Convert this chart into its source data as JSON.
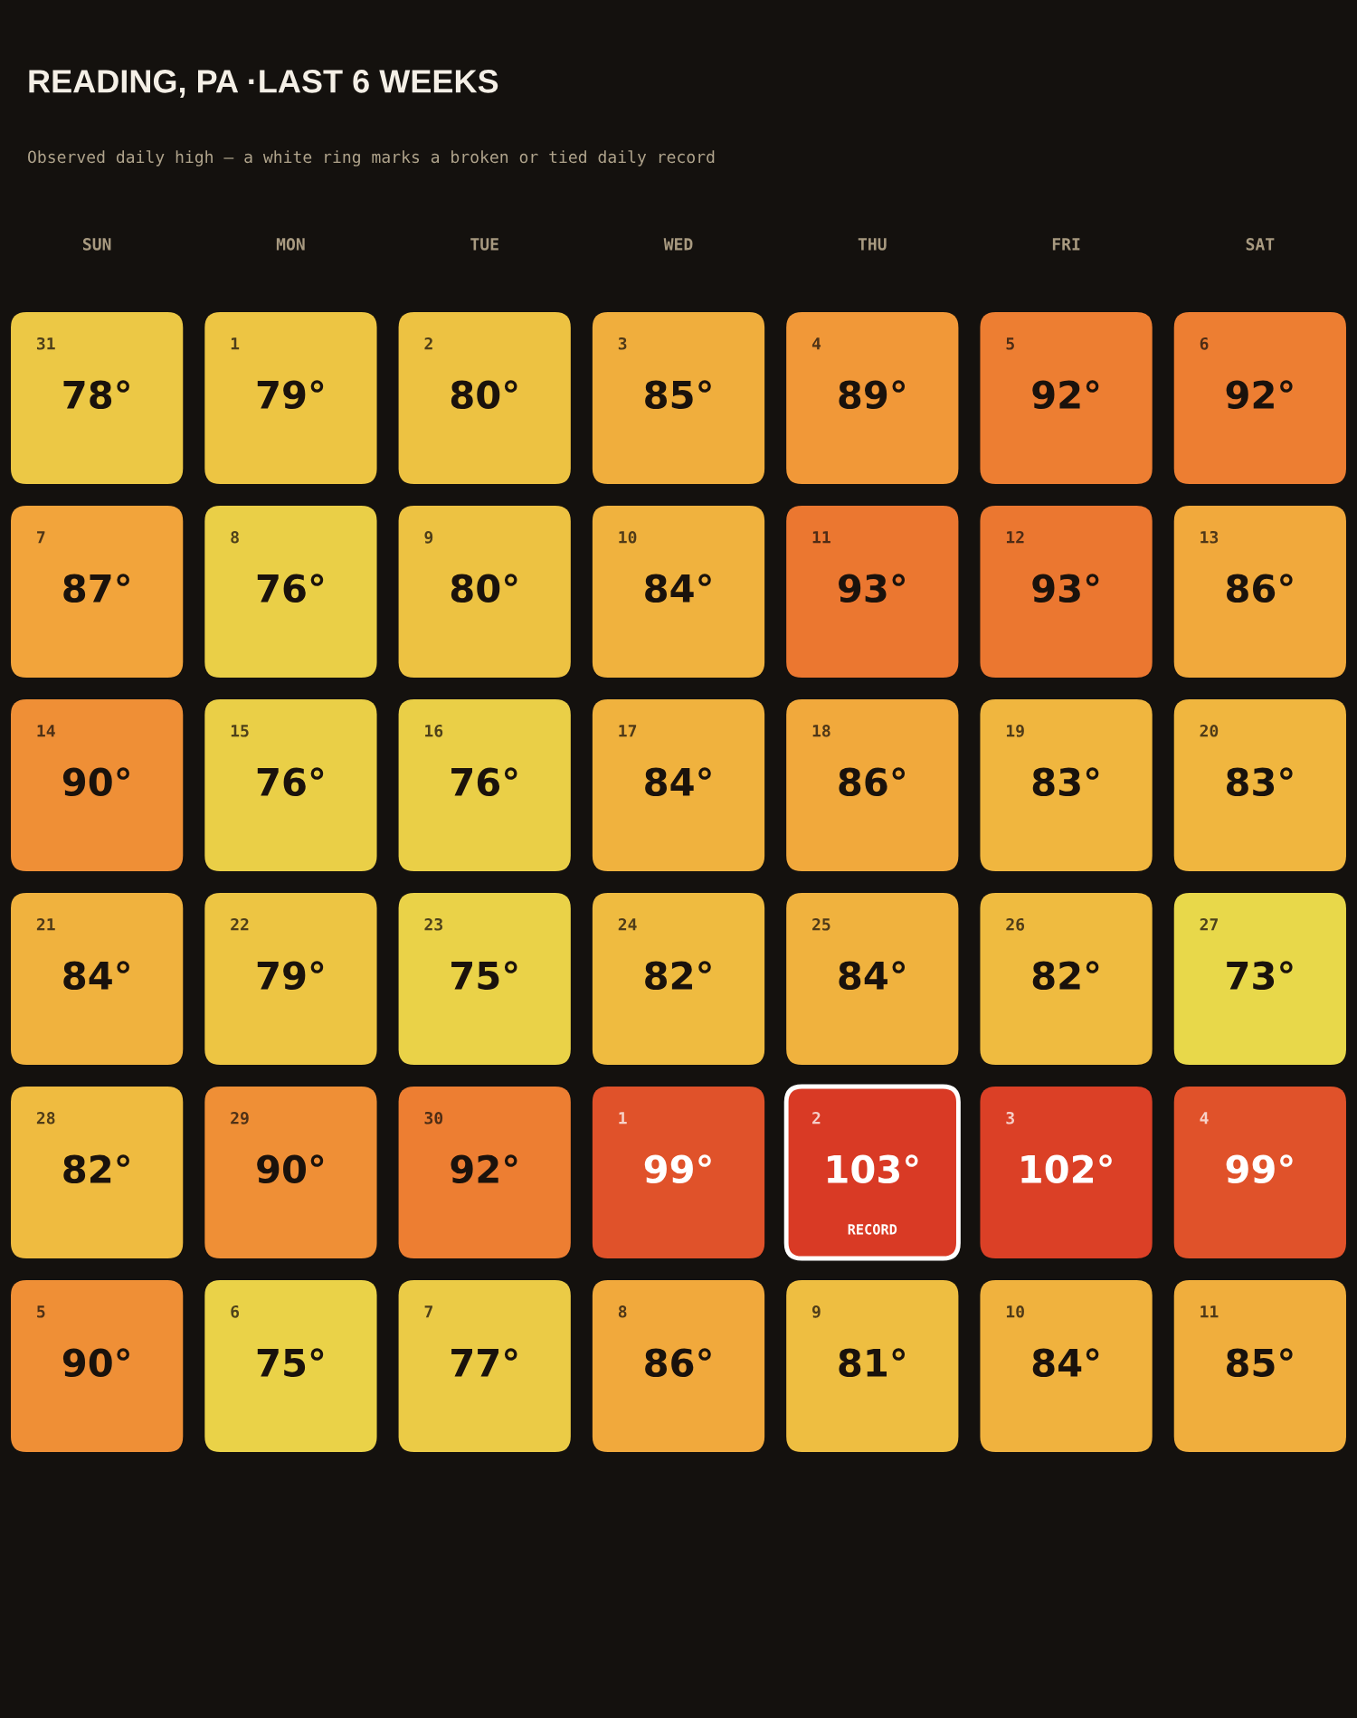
{
  "chart_data": {
    "type": "heatmap",
    "title": "READING, PA ·LAST 6 WEEKS",
    "subtitle": "Observed daily high — a white ring marks a broken or tied daily record",
    "categories": [
      "SUN",
      "MON",
      "TUE",
      "WED",
      "THU",
      "FRI",
      "SAT"
    ],
    "y_categories": [
      null,
      null,
      null,
      null,
      null,
      null
    ],
    "cells": [
      [
        78,
        79,
        80,
        85,
        89,
        92,
        92
      ],
      [
        87,
        76,
        80,
        84,
        93,
        93,
        86
      ],
      [
        90,
        76,
        76,
        84,
        86,
        83,
        83
      ],
      [
        84,
        79,
        75,
        82,
        84,
        82,
        73
      ],
      [
        82,
        90,
        92,
        99,
        103,
        102,
        99
      ],
      [
        90,
        75,
        77,
        86,
        81,
        84,
        85
      ]
    ],
    "cell_labels": [
      [
        "78°",
        "79°",
        "80°",
        "85°",
        "89°",
        "92°",
        "92°"
      ],
      [
        "87°",
        "76°",
        "80°",
        "84°",
        "93°",
        "93°",
        "86°"
      ],
      [
        "90°",
        "76°",
        "76°",
        "84°",
        "86°",
        "83°",
        "83°"
      ],
      [
        "84°",
        "79°",
        "75°",
        "82°",
        "84°",
        "82°",
        "73°"
      ],
      [
        "82°",
        "90°",
        "92°",
        "99°",
        "103°\nRECORD",
        "102°",
        "99°"
      ],
      [
        "90°",
        "75°",
        "77°",
        "86°",
        "81°",
        "84°",
        "85°"
      ]
    ],
    "annotations": [
      "31",
      "1",
      "2",
      "3",
      "4",
      "5",
      "6",
      "7",
      "8",
      "9",
      "10",
      "11",
      "12",
      "13",
      "14",
      "15",
      "16",
      "17",
      "18",
      "19",
      "20",
      "21",
      "22",
      "23",
      "24",
      "25",
      "26",
      "27",
      "28",
      "29",
      "30",
      "1",
      "2",
      "3",
      "4",
      "5",
      "6",
      "7",
      "8",
      "9",
      "10",
      "11"
    ]
  }
}
